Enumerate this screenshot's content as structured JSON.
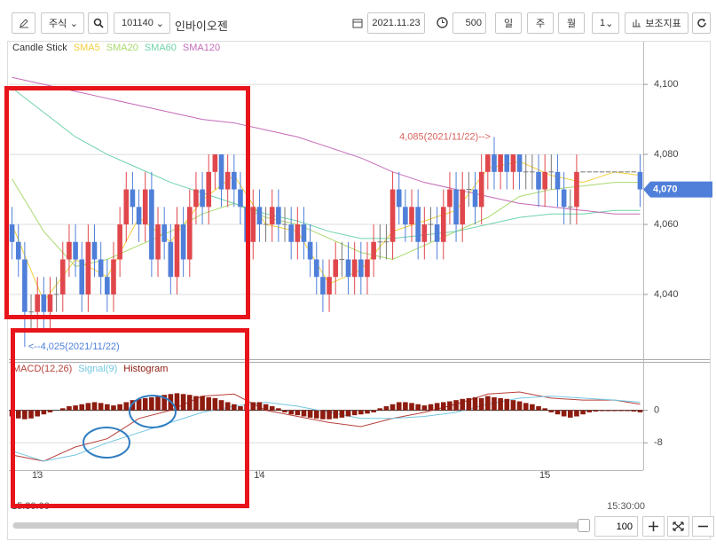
{
  "toolbar": {
    "market": "주식",
    "code": "101140",
    "name": "인바이오젠",
    "date": "2021.11.23",
    "count": 500,
    "periods": [
      "일",
      "주",
      "월"
    ],
    "interval": "1",
    "indicator_button": "보조지표"
  },
  "chart_data": [
    {
      "type": "candlestick",
      "series": [
        {
          "name": "Candle Stick",
          "kind": "candlestick",
          "color": "#333333",
          "up_color": "#e0474c",
          "down_color": "#4f7fd9",
          "flat_color": "#777777",
          "open": [
            4060,
            4055,
            4050,
            4035,
            4035,
            4040,
            4035,
            4040,
            4040,
            4050,
            4055,
            4050,
            4040,
            4055,
            4050,
            4045,
            4040,
            4050,
            4060,
            4070,
            4065,
            4060,
            4070,
            4050,
            4060,
            4055,
            4045,
            4060,
            4050,
            4065,
            4070,
            4065,
            4075,
            4080,
            4070,
            4075,
            4070,
            4065,
            4055,
            4065,
            4060,
            4060,
            4065,
            4060,
            4060,
            4055,
            4060,
            4055,
            4050,
            4045,
            4040,
            4045,
            4050,
            4050,
            4045,
            4050,
            4045,
            4050,
            4055,
            4055,
            4055,
            4070,
            4065,
            4060,
            4065,
            4055,
            4060,
            4060,
            4055,
            4065,
            4070,
            4060,
            4070,
            4070,
            4065,
            4075,
            4080,
            4075,
            4080,
            4075,
            4080,
            4075,
            4075,
            4075,
            4070,
            4075,
            4075,
            4070,
            4065,
            4065,
            4075,
            4075,
            4075,
            4075,
            4075,
            4075,
            4075,
            4075,
            4075,
            4075
          ],
          "high": [
            4065,
            4060,
            4055,
            4040,
            4045,
            4045,
            4045,
            4045,
            4055,
            4060,
            4060,
            4055,
            4060,
            4060,
            4055,
            4050,
            4055,
            4065,
            4075,
            4075,
            4070,
            4075,
            4075,
            4065,
            4065,
            4060,
            4065,
            4065,
            4070,
            4075,
            4075,
            4080,
            4080,
            4080,
            4080,
            4080,
            4075,
            4070,
            4070,
            4070,
            4065,
            4070,
            4070,
            4065,
            4065,
            4065,
            4065,
            4060,
            4055,
            4050,
            4050,
            4055,
            4055,
            4055,
            4055,
            4055,
            4055,
            4060,
            4060,
            4060,
            4075,
            4075,
            4070,
            4070,
            4070,
            4065,
            4065,
            4065,
            4070,
            4075,
            4075,
            4075,
            4075,
            4075,
            4080,
            4080,
            4085,
            4080,
            4080,
            4080,
            4080,
            4080,
            4080,
            4080,
            4080,
            4080,
            4080,
            4075,
            4070,
            4080,
            4075,
            4075,
            4075,
            4075,
            4075,
            4075,
            4075,
            4075,
            4075,
            4080
          ],
          "low": [
            4050,
            4045,
            4025,
            4030,
            4030,
            4030,
            4030,
            4035,
            4035,
            4045,
            4045,
            4035,
            4035,
            4045,
            4040,
            4035,
            4035,
            4045,
            4055,
            4060,
            4055,
            4055,
            4045,
            4045,
            4050,
            4040,
            4040,
            4045,
            4045,
            4060,
            4060,
            4060,
            4070,
            4065,
            4065,
            4065,
            4060,
            4050,
            4050,
            4055,
            4055,
            4055,
            4055,
            4055,
            4050,
            4050,
            4050,
            4045,
            4040,
            4035,
            4035,
            4040,
            4045,
            4040,
            4040,
            4040,
            4040,
            4045,
            4050,
            4050,
            4050,
            4060,
            4055,
            4055,
            4050,
            4050,
            4055,
            4050,
            4050,
            4060,
            4055,
            4055,
            4065,
            4060,
            4060,
            4070,
            4070,
            4070,
            4070,
            4070,
            4070,
            4070,
            4070,
            4065,
            4065,
            4070,
            4065,
            4060,
            4060,
            4060,
            4075,
            4075,
            4075,
            4075,
            4075,
            4075,
            4075,
            4075,
            4075,
            4065
          ],
          "close": [
            4055,
            4050,
            4035,
            4035,
            4040,
            4035,
            4040,
            4040,
            4050,
            4055,
            4050,
            4040,
            4055,
            4050,
            4045,
            4040,
            4050,
            4060,
            4070,
            4065,
            4060,
            4070,
            4050,
            4060,
            4055,
            4045,
            4060,
            4050,
            4065,
            4070,
            4065,
            4075,
            4080,
            4070,
            4075,
            4070,
            4065,
            4055,
            4065,
            4060,
            4060,
            4065,
            4060,
            4060,
            4055,
            4060,
            4055,
            4050,
            4045,
            4040,
            4045,
            4050,
            4050,
            4045,
            4050,
            4045,
            4050,
            4055,
            4055,
            4055,
            4070,
            4065,
            4060,
            4065,
            4055,
            4060,
            4060,
            4055,
            4065,
            4070,
            4060,
            4070,
            4070,
            4065,
            4075,
            4080,
            4075,
            4080,
            4075,
            4080,
            4075,
            4075,
            4075,
            4070,
            4075,
            4075,
            4070,
            4065,
            4065,
            4075,
            4075,
            4075,
            4075,
            4075,
            4075,
            4075,
            4075,
            4075,
            4075,
            4070
          ]
        },
        {
          "name": "SMA5",
          "kind": "line",
          "color": "#f2cf3a",
          "x": [
            0,
            5,
            10,
            15,
            20,
            25,
            30,
            35,
            40,
            45,
            50,
            55,
            60,
            65,
            70,
            75,
            80,
            85,
            90,
            95,
            99
          ],
          "values": [
            4060,
            4038,
            4050,
            4045,
            4062,
            4055,
            4067,
            4074,
            4060,
            4058,
            4043,
            4047,
            4058,
            4061,
            4064,
            4076,
            4078,
            4074,
            4072,
            4075,
            4074
          ]
        },
        {
          "name": "SMA20",
          "kind": "line",
          "color": "#a9d96c",
          "x": [
            0,
            5,
            10,
            15,
            20,
            25,
            30,
            35,
            40,
            45,
            50,
            55,
            60,
            65,
            70,
            75,
            80,
            85,
            90,
            95,
            99
          ],
          "values": [
            4073,
            4058,
            4048,
            4050,
            4054,
            4058,
            4063,
            4066,
            4062,
            4060,
            4056,
            4052,
            4050,
            4054,
            4058,
            4062,
            4068,
            4070,
            4071,
            4072,
            4072
          ]
        },
        {
          "name": "SMA60",
          "kind": "line",
          "color": "#6fd3aa",
          "x": [
            0,
            5,
            10,
            15,
            20,
            25,
            30,
            35,
            40,
            45,
            50,
            55,
            60,
            65,
            70,
            75,
            80,
            85,
            90,
            95,
            99
          ],
          "values": [
            4099,
            4092,
            4085,
            4080,
            4076,
            4072,
            4069,
            4066,
            4063,
            4061,
            4058,
            4056,
            4056,
            4057,
            4058,
            4060,
            4062,
            4063,
            4063,
            4064,
            4064
          ]
        },
        {
          "name": "SMA120",
          "kind": "line",
          "color": "#c46ab8",
          "x": [
            0,
            5,
            10,
            15,
            20,
            25,
            30,
            35,
            40,
            45,
            50,
            55,
            60,
            65,
            70,
            75,
            80,
            85,
            90,
            95,
            99
          ],
          "values": [
            4102,
            4100,
            4098,
            4096,
            4094,
            4092,
            4090,
            4089,
            4087,
            4085,
            4082,
            4079,
            4075,
            4072,
            4070,
            4068,
            4066,
            4065,
            4064,
            4063,
            4063
          ]
        }
      ],
      "ylim": [
        4021.5,
        4112.2
      ],
      "yticks": [
        {
          "value": 4040,
          "label": "4,040"
        },
        {
          "value": 4060,
          "label": "4,060"
        },
        {
          "value": 4080,
          "label": "4,080"
        },
        {
          "value": 4100,
          "label": "4,100"
        }
      ],
      "grid": true,
      "max_label": "4,085(2021/11/22)-->",
      "max_label_color": "#d9645f",
      "min_label": "<--4,025(2021/11/22)",
      "min_label_color": "#4f7fd9",
      "last_price": {
        "value": 4070,
        "label": "4,070"
      },
      "last_price_color": "#4f7fd9"
    },
    {
      "type": "macd",
      "categories": [
        null,
        null,
        null,
        null,
        "13",
        null,
        null,
        null,
        null,
        null,
        null,
        null,
        null,
        null,
        null,
        null,
        null,
        null,
        null,
        null,
        null,
        null,
        null,
        null,
        null,
        null,
        null,
        null,
        null,
        null,
        null,
        null,
        null,
        null,
        null,
        null,
        null,
        null,
        null,
        "14",
        null,
        null,
        null,
        null,
        null,
        null,
        null,
        null,
        null,
        null,
        null,
        null,
        null,
        null,
        null,
        null,
        null,
        null,
        null,
        null,
        null,
        null,
        null,
        null,
        null,
        null,
        null,
        null,
        null,
        null,
        null,
        null,
        null,
        null,
        null,
        null,
        null,
        null,
        null,
        null,
        null,
        null,
        null,
        null,
        "15",
        null,
        null,
        null,
        null,
        null,
        null,
        null,
        null,
        null,
        null,
        null,
        null,
        null,
        null,
        null
      ],
      "series": [
        {
          "name": "MACD(12,26)",
          "kind": "line",
          "color": "#b8413b",
          "x": [
            0,
            5,
            10,
            15,
            20,
            25,
            30,
            35,
            40,
            45,
            50,
            55,
            60,
            65,
            70,
            75,
            80,
            85,
            90,
            95,
            99
          ],
          "values": [
            -11,
            -12.5,
            -9,
            -7,
            -2,
            0,
            3.5,
            4,
            0,
            -1.5,
            -3,
            -4,
            -2,
            -0.5,
            1.5,
            4,
            4.5,
            3,
            2.5,
            2.5,
            1.5
          ]
        },
        {
          "name": "Signal(9)",
          "kind": "line",
          "color": "#73c7e3",
          "x": [
            0,
            5,
            10,
            15,
            20,
            25,
            30,
            35,
            40,
            45,
            50,
            55,
            60,
            65,
            70,
            75,
            80,
            85,
            90,
            95,
            99
          ],
          "values": [
            -10,
            -12.5,
            -11,
            -8,
            -5.5,
            -3,
            -0.5,
            1,
            2,
            1,
            -0.5,
            -2,
            -2,
            -1.5,
            -0.5,
            1.5,
            3,
            3.5,
            3,
            2.5,
            2
          ]
        },
        {
          "name": "Histogram",
          "kind": "bar",
          "color": "#8e1b0f",
          "values": [
            -1.5,
            -2,
            -2.2,
            -2,
            -1.5,
            -1,
            -0.5,
            0,
            0.5,
            1,
            1.2,
            1.5,
            1.8,
            2,
            1.8,
            1.5,
            1.2,
            1.5,
            2,
            2.5,
            2.8,
            3,
            3.2,
            3.5,
            3.8,
            4,
            4.2,
            4,
            3.8,
            3.5,
            3.5,
            3.2,
            3,
            2.5,
            2,
            1.5,
            1,
            1.5,
            2,
            2,
            1.5,
            1,
            0.5,
            -0.5,
            -1,
            -1.2,
            -1.5,
            -1.8,
            -2,
            -2.2,
            -2.2,
            -2,
            -1.8,
            -1.5,
            -1.2,
            -1,
            -0.8,
            -0.5,
            0.5,
            1,
            1.5,
            2,
            2,
            1.8,
            1.5,
            1.2,
            1.5,
            1.8,
            2,
            2.2,
            2.5,
            2.8,
            3,
            3.2,
            3,
            3.5,
            3.2,
            3,
            2.8,
            2.5,
            2.2,
            1.8,
            1.5,
            1,
            0.5,
            -0.5,
            -1,
            -1.5,
            -1.8,
            -1.5,
            -1,
            -0.5,
            -0.3,
            -0.2,
            -0.2,
            -0.2,
            -0.2,
            -0.2,
            -0.3,
            -0.5
          ]
        }
      ],
      "ylim": [
        -14.7,
        11.7
      ],
      "yticks": [
        -8,
        0
      ],
      "grid": true
    }
  ],
  "footer": {
    "time_start": "15:30:00",
    "time_end": "15:30:00",
    "zoom": 100
  }
}
